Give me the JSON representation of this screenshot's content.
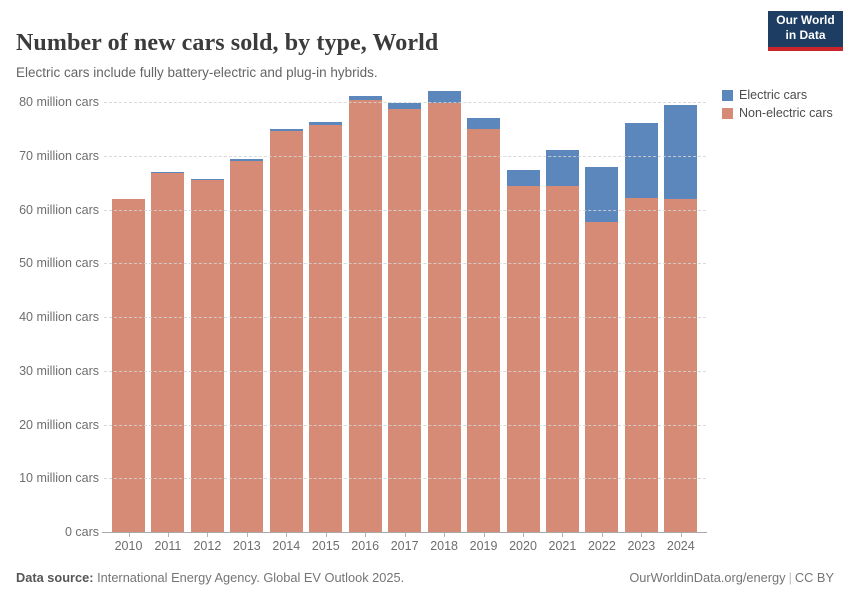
{
  "header": {
    "title": "Number of new cars sold, by type, World",
    "subtitle": "Electric cars include fully battery-electric and plug-in hybrids."
  },
  "logo": {
    "line1": "Our World",
    "line2": "in Data",
    "bg": "#1d3d63",
    "accent": "#c9252b"
  },
  "chart_data": {
    "type": "bar",
    "stacked": true,
    "title": "Number of new cars sold, by type, World",
    "categories": [
      "2010",
      "2011",
      "2012",
      "2013",
      "2014",
      "2015",
      "2016",
      "2017",
      "2018",
      "2019",
      "2020",
      "2021",
      "2022",
      "2023",
      "2024"
    ],
    "series": [
      {
        "name": "Electric cars",
        "color": "#5b87bd",
        "values": [
          0.01,
          0.05,
          0.13,
          0.21,
          0.32,
          0.55,
          0.75,
          1.2,
          2.1,
          2.1,
          3.0,
          6.6,
          10.3,
          14.0,
          17.4
        ]
      },
      {
        "name": "Non-electric cars",
        "color": "#d68b76",
        "values": [
          62.0,
          66.95,
          65.5,
          69.1,
          74.6,
          75.8,
          80.3,
          78.7,
          79.9,
          74.9,
          64.4,
          64.4,
          57.7,
          62.1,
          62.0
        ]
      }
    ],
    "unit": "million cars",
    "ylim": [
      0,
      80
    ],
    "ytick_step": 10,
    "ytick_labels": [
      "0 cars",
      "10 million cars",
      "20 million cars",
      "30 million cars",
      "40 million cars",
      "50 million cars",
      "60 million cars",
      "70 million cars",
      "80 million cars"
    ],
    "grid": "horizontal-dashed",
    "legend_position": "top-right"
  },
  "footer": {
    "source_label": "Data source:",
    "source_text": " International Energy Agency. Global EV Outlook 2025.",
    "link": "OurWorldinData.org/energy",
    "separator": "|",
    "license": "CC BY"
  }
}
